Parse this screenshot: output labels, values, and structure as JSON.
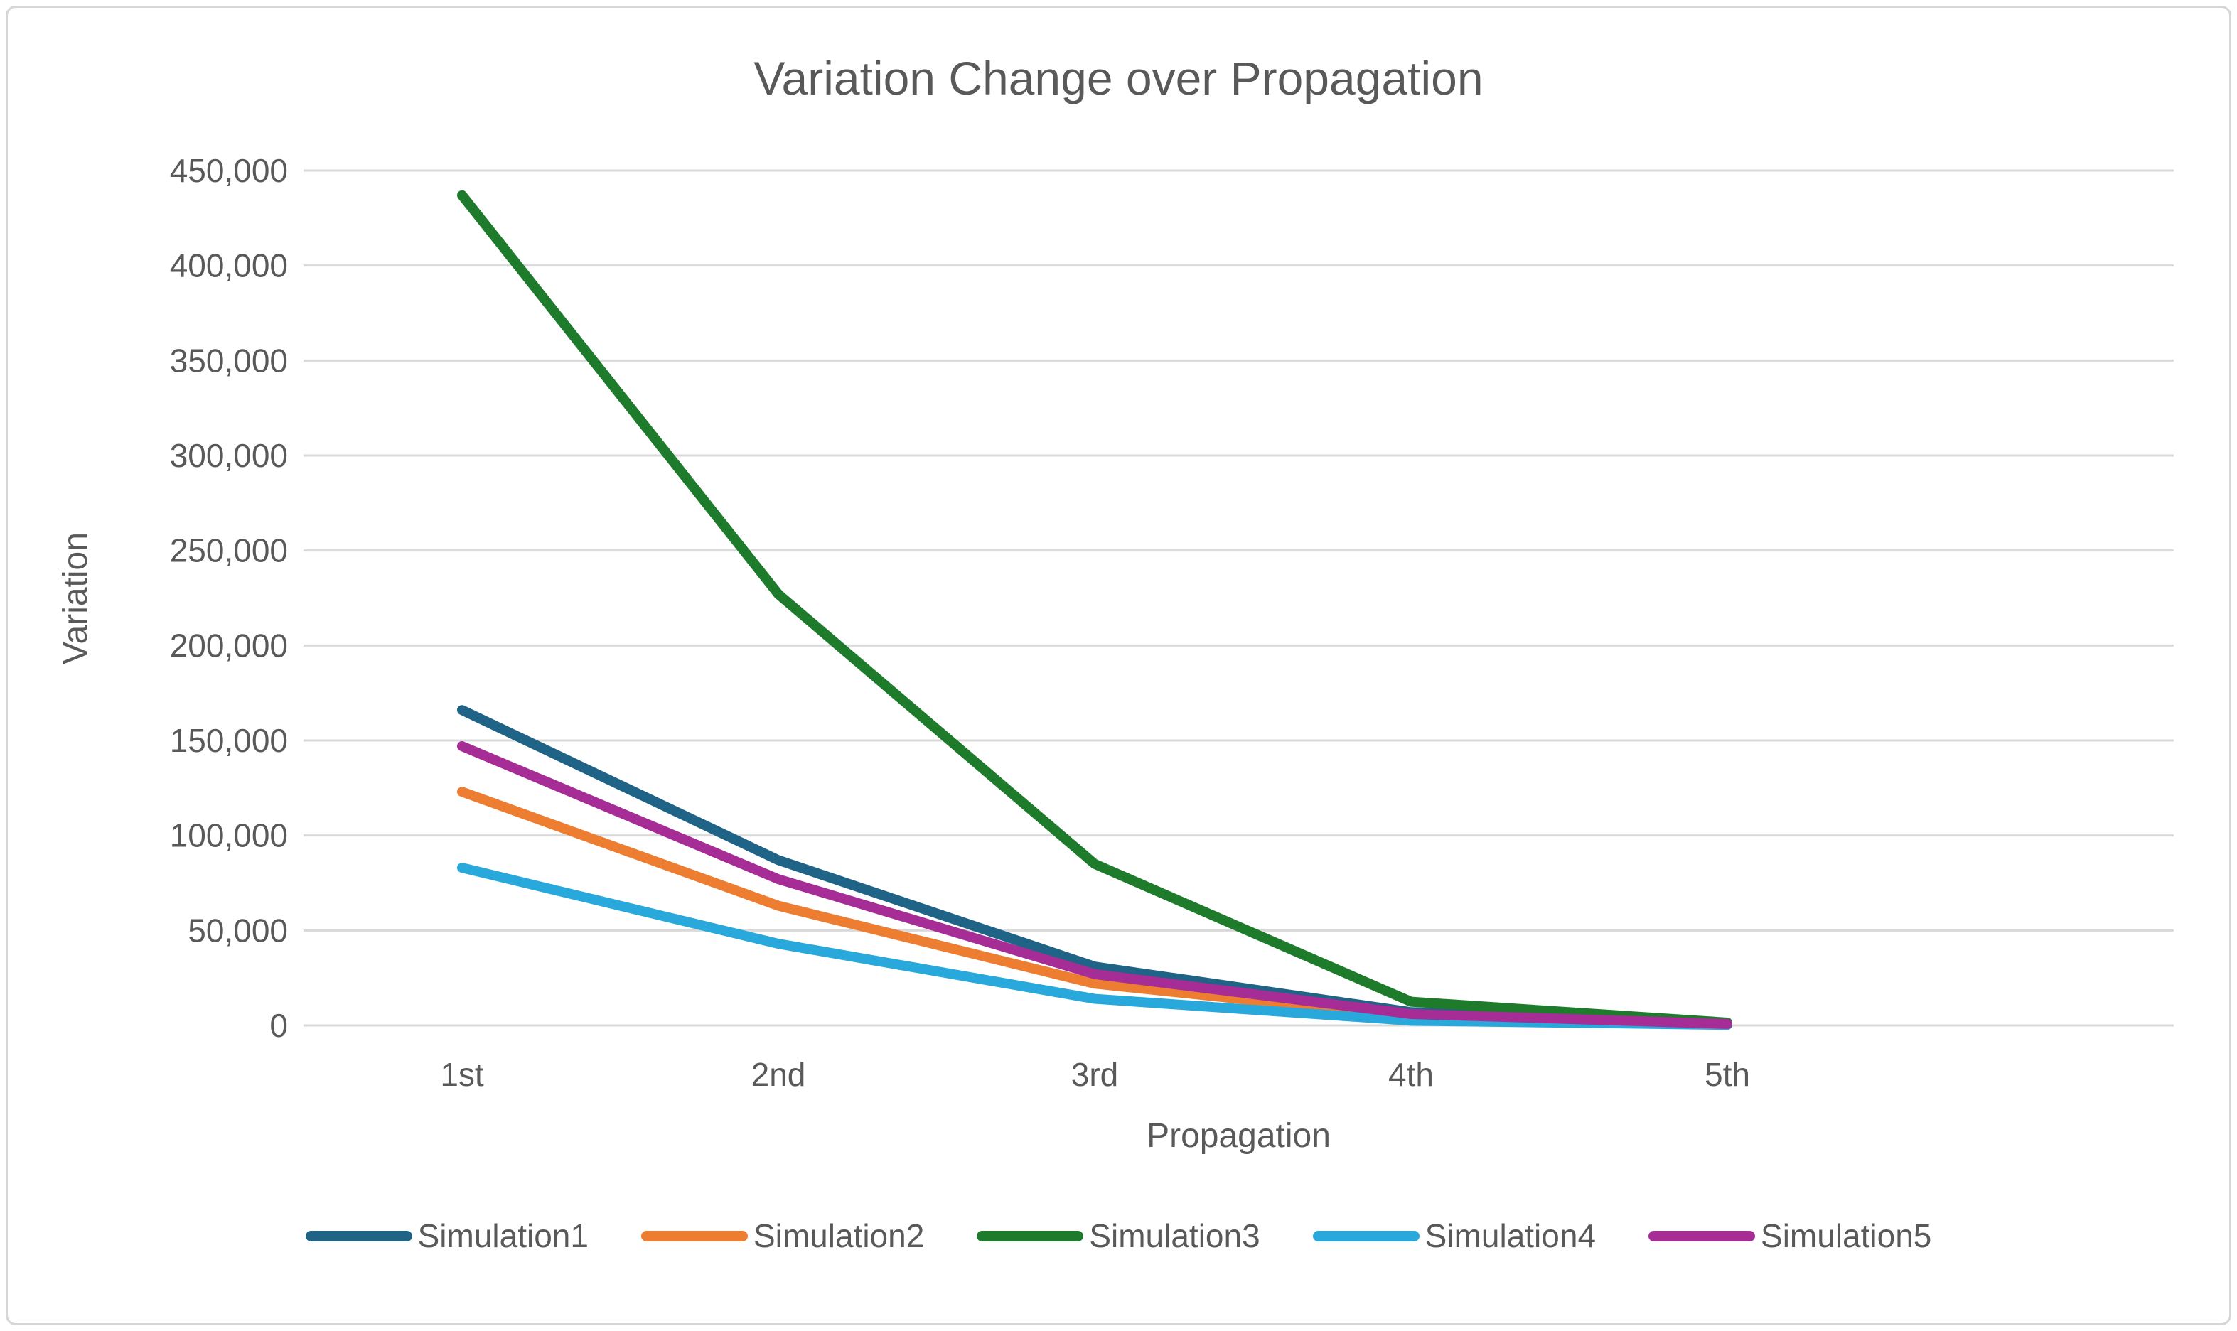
{
  "page": {
    "background_color": "#ffffff",
    "frame_border_color": "#d6d6d6"
  },
  "chart_data": {
    "type": "line",
    "title": "Variation Change over Propagation",
    "xlabel": "Propagation",
    "ylabel": "Variation",
    "categories": [
      "1st",
      "2nd",
      "3rd",
      "4th",
      "5th"
    ],
    "series": [
      {
        "name": "Simulation1",
        "color": "#1F6386",
        "values": [
          166000,
          87000,
          31000,
          7000,
          600
        ]
      },
      {
        "name": "Simulation2",
        "color": "#ED7D31",
        "values": [
          123000,
          63000,
          22000,
          4500,
          400
        ]
      },
      {
        "name": "Simulation3",
        "color": "#1E7B2C",
        "values": [
          437000,
          227000,
          85000,
          12500,
          1500
        ]
      },
      {
        "name": "Simulation4",
        "color": "#29A8DC",
        "values": [
          83000,
          43000,
          14000,
          2500,
          300
        ]
      },
      {
        "name": "Simulation5",
        "color": "#A62C96",
        "values": [
          147000,
          77000,
          27000,
          6000,
          800
        ]
      }
    ],
    "ylim": [
      0,
      450000
    ],
    "ytick_step": 50000,
    "ytick_labels": [
      "0",
      "50,000",
      "100,000",
      "150,000",
      "200,000",
      "250,000",
      "300,000",
      "350,000",
      "400,000",
      "450,000"
    ],
    "grid": true,
    "gridline_color": "#D9D9D9",
    "text_color": "#595959",
    "legend_position": "bottom"
  }
}
